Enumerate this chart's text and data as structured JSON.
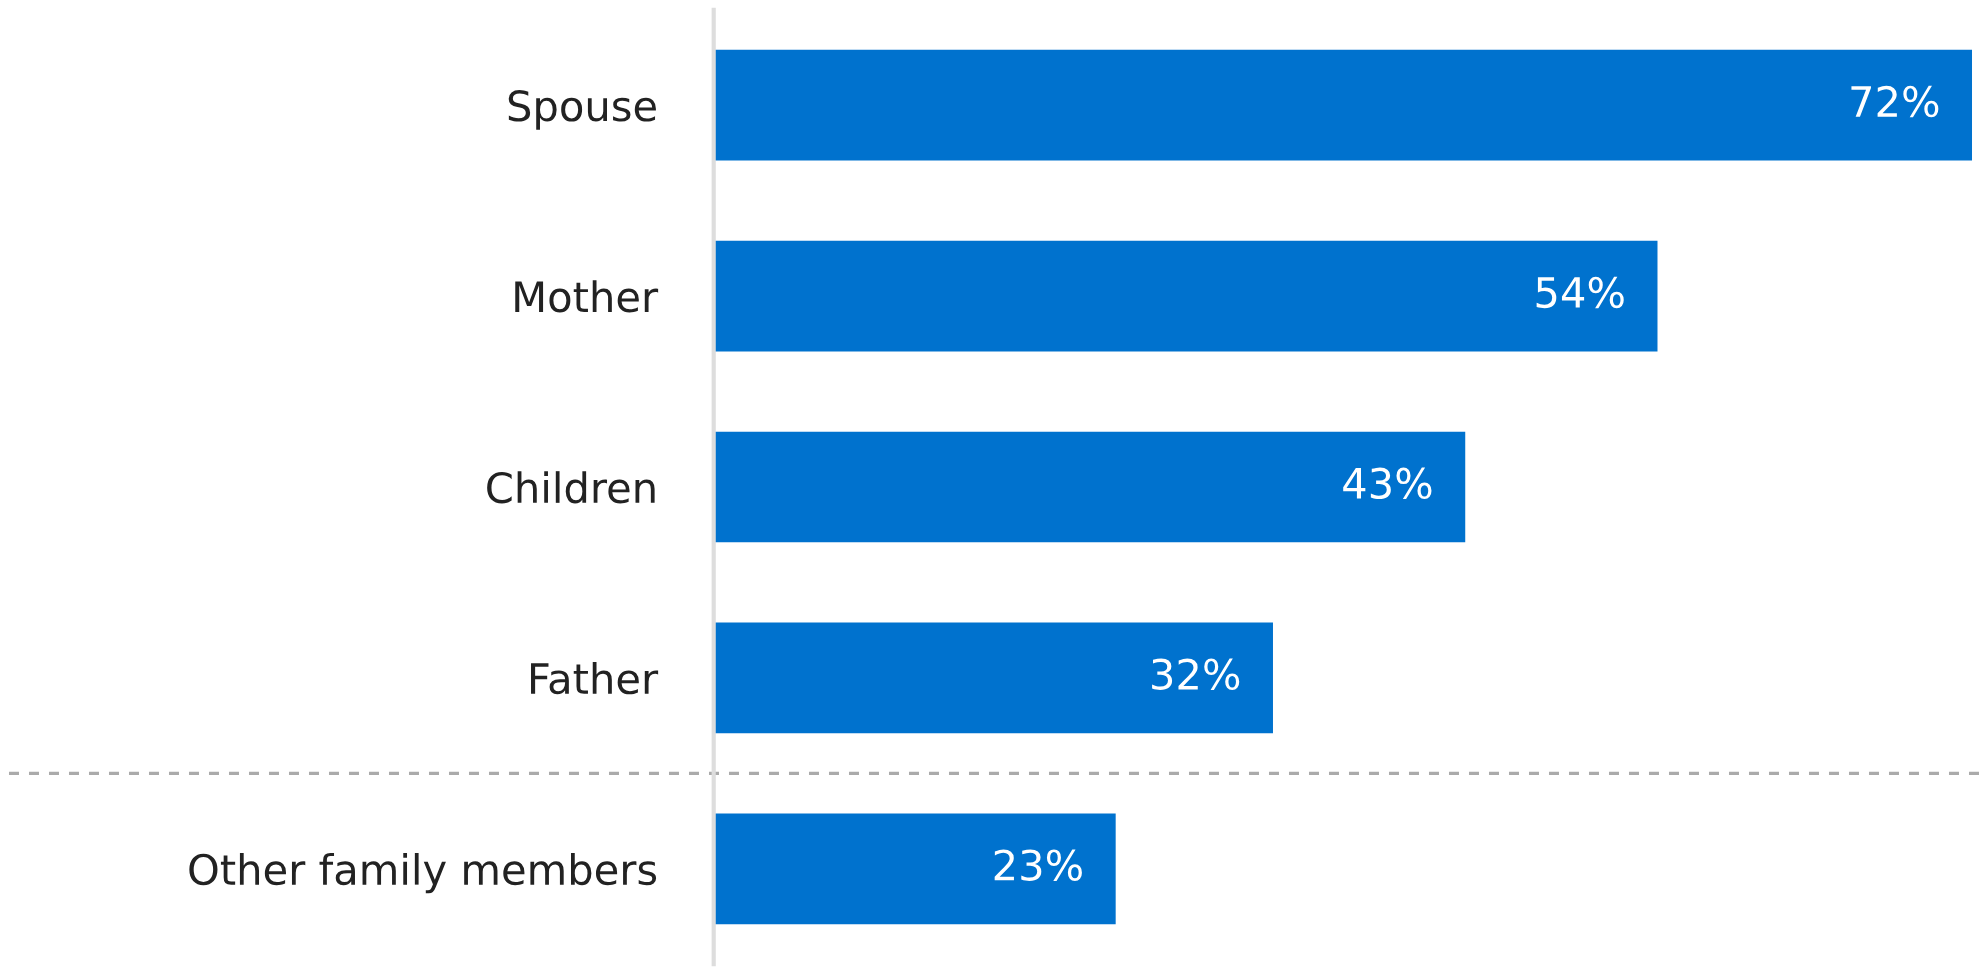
{
  "chart_data": {
    "type": "bar",
    "orientation": "horizontal",
    "categories": [
      "Spouse",
      "Mother",
      "Children",
      "Father",
      "Other family members"
    ],
    "values": [
      72,
      54,
      43,
      32,
      23
    ],
    "value_labels": [
      "72%",
      "54%",
      "43%",
      "32%",
      "23%"
    ],
    "color": "#0072ce",
    "grid": false,
    "legend": false
  }
}
